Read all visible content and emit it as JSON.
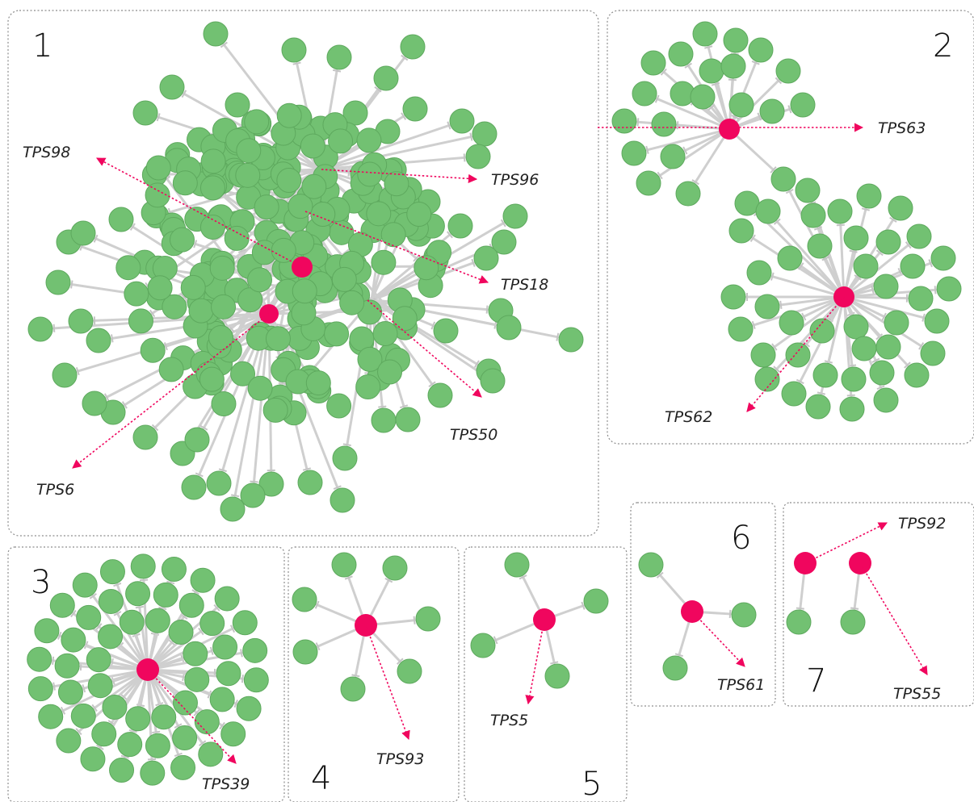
{
  "colors": {
    "target_node": "#72c172",
    "hub_node": "#f0065e",
    "edge": "#cfcfcf",
    "panel_border": "#8c8c8c"
  },
  "panels": [
    {
      "number": "1",
      "hub_labels": [
        "TPS98",
        "TPS96",
        "TPS18",
        "TPS50",
        "TPS6"
      ]
    },
    {
      "number": "2",
      "hub_labels": [
        "TPS63",
        "TPS62"
      ]
    },
    {
      "number": "3",
      "hub_labels": [
        "TPS39"
      ]
    },
    {
      "number": "4",
      "hub_labels": [
        "TPS93"
      ]
    },
    {
      "number": "5",
      "hub_labels": [
        "TPS5"
      ]
    },
    {
      "number": "6",
      "hub_labels": [
        "TPS61"
      ]
    },
    {
      "number": "7",
      "hub_labels": [
        "TPS92",
        "TPS55"
      ]
    }
  ]
}
